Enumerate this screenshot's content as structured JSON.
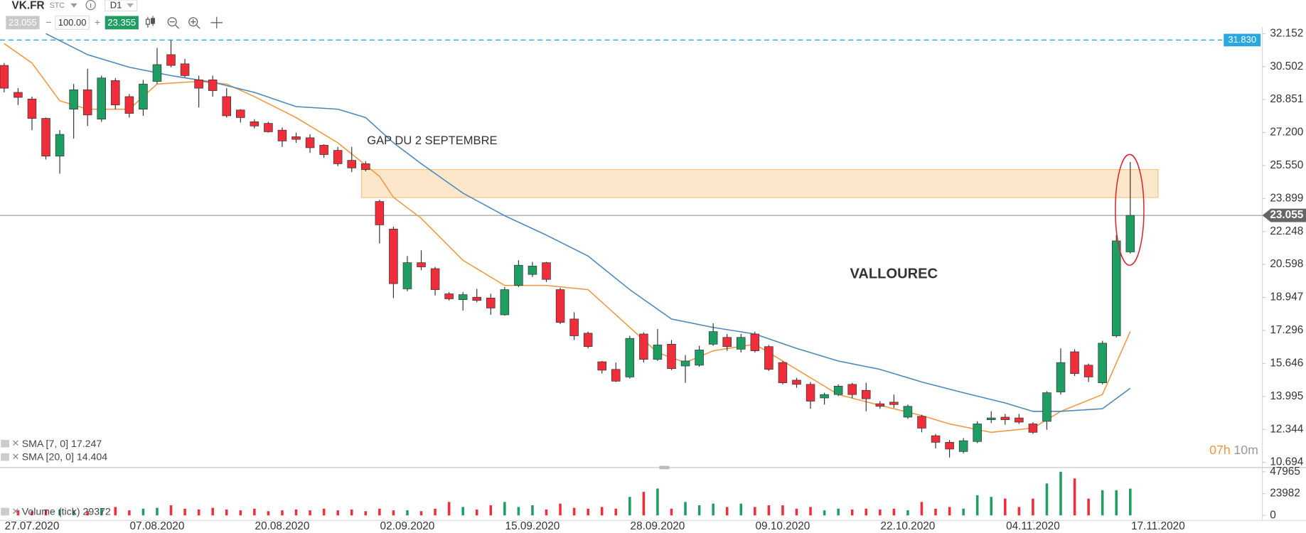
{
  "toolbar": {
    "symbol": "VK.FR",
    "kind": "STC",
    "period": "D1",
    "bid": "23.055",
    "quantity": "100.00",
    "ask": "23.355"
  },
  "chart_data": {
    "type": "candlestick",
    "annotations": {
      "gap": "GAP DU 2 SEPTEMBRE",
      "name": "VALLOUREC"
    },
    "timer": {
      "hours": "07h",
      "minutes": "10m"
    },
    "up_color": "#1e9e63",
    "down_color": "#ef2d3b",
    "xlim": [
      -0.3,
      90.5
    ],
    "ylim": [
      10.48,
      32.49
    ],
    "yticks": [
      32.152,
      30.502,
      28.851,
      {
        "value": 27.2,
        "label": "27.200"
      },
      {
        "value": 25.55,
        "label": "25.550"
      },
      23.899,
      22.248,
      20.598,
      18.947,
      17.296,
      15.646,
      13.995,
      12.344,
      10.694
    ],
    "xticks": [
      {
        "value": 2,
        "label": "27.07.2020"
      },
      {
        "value": 11,
        "label": "07.08.2020"
      },
      {
        "value": 20,
        "label": "20.08.2020"
      },
      {
        "value": 29,
        "label": "02.09.2020"
      },
      {
        "value": 38,
        "label": "15.09.2020"
      },
      {
        "value": 47,
        "label": "28.09.2020"
      },
      {
        "value": 56,
        "label": "09.10.2020"
      },
      {
        "value": 65,
        "label": "22.10.2020"
      },
      {
        "value": 74,
        "label": "04.11.2020"
      },
      {
        "value": 83,
        "label": "17.11.2020"
      }
    ],
    "open": [
      30.56,
      29.21,
      28.88,
      27.91,
      26.02,
      28.37,
      29.34,
      27.87,
      29.8,
      29.0,
      28.37,
      29.76,
      31.1,
      30.64,
      29.84,
      29.84,
      29.0,
      28.33,
      27.74,
      27.66,
      27.32,
      26.99,
      26.94,
      26.57,
      26.31,
      25.81,
      25.64,
      23.75,
      22.37,
      19.38,
      20.69,
      20.39,
      19.13,
      18.84,
      18.96,
      18.92,
      18.08,
      19.55,
      20.1,
      20.69,
      19.34,
      17.87,
      17.16,
      15.73,
      15.35,
      14.97,
      17.12,
      15.85,
      16.61,
      15.52,
      15.56,
      16.61,
      16.95,
      16.36,
      17.12,
      16.49,
      15.69,
      14.81,
      14.6,
      13.92,
      14.09,
      14.6,
      14.3,
      13.63,
      13.71,
      12.96,
      13.0,
      12.03,
      11.7,
      11.24,
      11.74,
      12.83,
      12.96,
      12.92,
      12.62,
      12.75,
      14.22,
      16.23,
      15.56,
      14.68,
      17.03,
      21.23
    ],
    "high": [
      30.68,
      29.42,
      29.0,
      27.95,
      27.32,
      29.63,
      30.39,
      30.05,
      29.93,
      29.13,
      29.84,
      31.44,
      31.82,
      30.89,
      30.05,
      30.05,
      29.42,
      28.37,
      27.87,
      27.74,
      27.45,
      27.2,
      27.11,
      26.61,
      26.48,
      26.48,
      25.77,
      23.84,
      22.49,
      21.02,
      21.31,
      20.48,
      19.22,
      19.22,
      19.38,
      19.13,
      19.47,
      20.81,
      20.73,
      20.73,
      19.43,
      18.21,
      17.24,
      15.77,
      15.69,
      17.03,
      17.2,
      17.37,
      16.82,
      16.07,
      16.53,
      17.66,
      17.12,
      17.12,
      17.24,
      16.57,
      15.77,
      14.93,
      14.72,
      14.18,
      14.6,
      14.68,
      14.68,
      13.76,
      14.09,
      13.59,
      13.08,
      12.12,
      11.82,
      11.91,
      12.75,
      13.25,
      13.12,
      13.12,
      12.71,
      14.26,
      16.4,
      16.36,
      15.64,
      16.78,
      22.07,
      25.73
    ],
    "low": [
      29.21,
      28.58,
      27.32,
      25.85,
      25.14,
      26.9,
      27.53,
      27.74,
      28.37,
      27.95,
      28.04,
      29.63,
      30.47,
      29.97,
      28.46,
      29.0,
      27.95,
      27.7,
      27.41,
      27.2,
      26.48,
      26.69,
      26.19,
      25.94,
      25.52,
      25.22,
      25.26,
      21.65,
      18.92,
      19.26,
      20.31,
      19.05,
      18.8,
      18.29,
      18.71,
      18.08,
      18.04,
      19.47,
      19.97,
      19.72,
      17.62,
      16.82,
      16.4,
      15.14,
      14.72,
      14.89,
      15.69,
      15.77,
      15.31,
      14.68,
      15.48,
      16.53,
      16.28,
      16.19,
      16.19,
      15.27,
      14.6,
      14.43,
      13.38,
      13.59,
      14.01,
      13.92,
      13.25,
      13.38,
      13.42,
      12.87,
      12.2,
      11.4,
      10.94,
      11.15,
      11.66,
      12.66,
      12.58,
      12.62,
      12.12,
      12.33,
      14.09,
      15.02,
      14.72,
      14.6,
      16.95,
      21.15
    ],
    "close": [
      29.42,
      28.96,
      27.91,
      26.02,
      27.11,
      29.34,
      28.08,
      29.93,
      28.58,
      28.16,
      29.63,
      30.6,
      30.56,
      30.05,
      29.42,
      29.3,
      28.04,
      27.95,
      27.53,
      27.24,
      26.78,
      26.86,
      26.44,
      26.1,
      25.64,
      25.43,
      25.35,
      22.58,
      19.64,
      20.69,
      20.48,
      19.34,
      18.88,
      19.09,
      18.8,
      18.42,
      19.34,
      20.56,
      20.52,
      19.85,
      17.7,
      17.03,
      16.49,
      15.31,
      14.76,
      16.9,
      15.85,
      16.57,
      15.39,
      15.77,
      16.32,
      17.24,
      16.49,
      16.95,
      16.28,
      15.35,
      14.68,
      14.6,
      13.76,
      14.09,
      14.51,
      14.09,
      13.88,
      13.5,
      13.59,
      13.5,
      12.41,
      11.7,
      11.36,
      11.78,
      12.62,
      12.92,
      12.83,
      12.71,
      12.2,
      14.18,
      15.69,
      15.14,
      14.97,
      16.66,
      21.78,
      23.055
    ],
    "current_price": 23.055,
    "level": {
      "value": 31.83,
      "label": "31.830",
      "color": "#29a8e0"
    },
    "zone": {
      "from": 23.95,
      "to": 25.35,
      "x": [
        25.7,
        83
      ],
      "color": "#fde3c2"
    },
    "series": [
      {
        "name": "SMA [7, 0]",
        "color": "#f0953e",
        "x": [
          0,
          2,
          4,
          6,
          9,
          11,
          14,
          16,
          18,
          21,
          24,
          27,
          28,
          30,
          33,
          36,
          39,
          42,
          44,
          47,
          49,
          51,
          54,
          57,
          60,
          63,
          66,
          68,
          71,
          74,
          76,
          79,
          81
        ],
        "values": [
          31.65,
          30.68,
          28.79,
          28.37,
          28.37,
          29.63,
          29.76,
          29.63,
          29.0,
          27.95,
          26.69,
          25.01,
          23.96,
          22.91,
          20.81,
          19.55,
          19.55,
          19.34,
          18.08,
          16.19,
          15.69,
          16.28,
          16.61,
          15.35,
          14.09,
          13.55,
          13.04,
          12.62,
          12.2,
          12.41,
          13.25,
          14.09,
          17.247
        ]
      },
      {
        "name": "SMA [20, 0]",
        "color": "#4a86b8",
        "x": [
          3,
          6,
          9,
          12,
          15,
          18,
          21,
          24,
          26,
          28,
          30,
          33,
          36,
          39,
          42,
          45,
          48,
          51,
          54,
          57,
          60,
          63,
          66,
          69,
          72,
          74,
          76,
          79,
          81
        ],
        "values": [
          32.15,
          31.1,
          30.47,
          30.05,
          29.72,
          29.21,
          28.5,
          28.37,
          27.95,
          26.69,
          25.64,
          24.17,
          23.04,
          22.07,
          21.02,
          19.34,
          17.87,
          17.45,
          17.12,
          16.4,
          15.77,
          15.35,
          14.72,
          14.18,
          13.67,
          13.25,
          13.25,
          13.38,
          14.404
        ]
      }
    ],
    "volume": {
      "name": "Volume (tick)",
      "ylim": [
        0,
        51650
      ],
      "yticks": [
        0,
        23982,
        47965
      ],
      "values": [
        7376,
        5532,
        4610,
        6454,
        6454,
        5532,
        4610,
        7376,
        9220,
        5532,
        7376,
        8298,
        11064,
        7376,
        6454,
        8298,
        6454,
        5532,
        7376,
        4610,
        5532,
        6454,
        5532,
        7376,
        5532,
        6454,
        4610,
        7376,
        5532,
        5532,
        4610,
        7376,
        14752,
        9220,
        6454,
        11064,
        14752,
        9220,
        11064,
        6454,
        12908,
        8298,
        7376,
        9220,
        7376,
        20284,
        25816,
        29504,
        7376,
        14752,
        11064,
        12908,
        9220,
        12908,
        9220,
        11064,
        11064,
        7376,
        9220,
        5532,
        7376,
        6454,
        7376,
        6454,
        7376,
        5532,
        14752,
        7376,
        9220,
        7376,
        22128,
        20284,
        18440,
        9220,
        18440,
        35036,
        47944,
        40568,
        18440,
        27660,
        27660,
        29372
      ]
    }
  }
}
